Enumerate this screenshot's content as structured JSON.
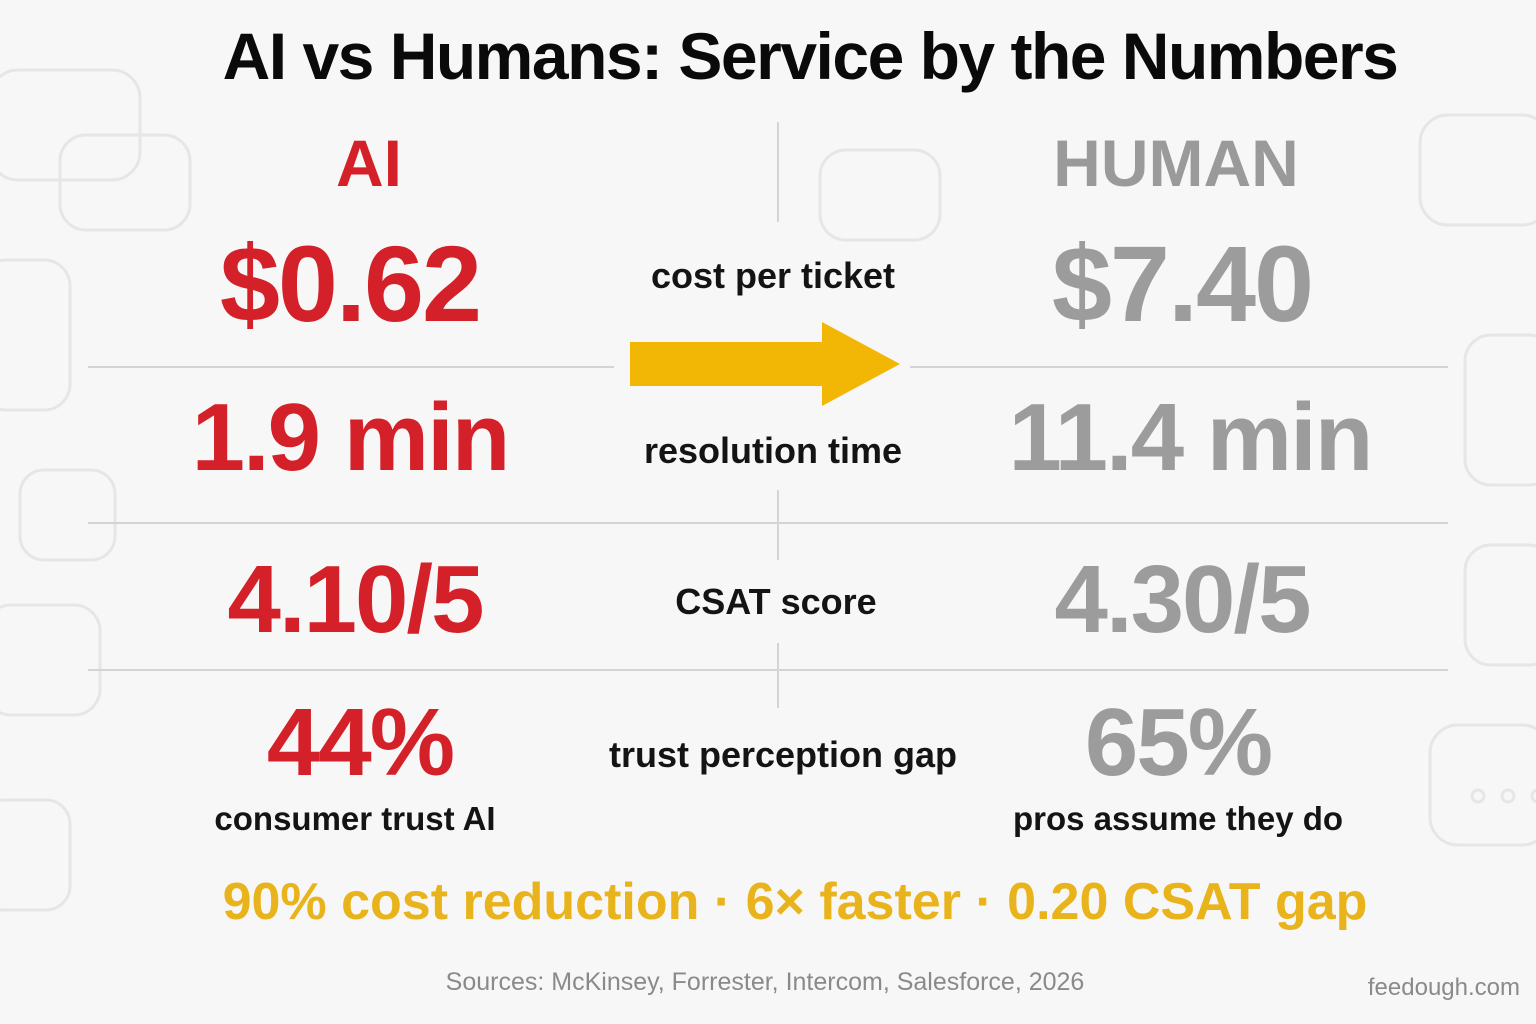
{
  "title": "AI vs Humans: Service by the Numbers",
  "columns": {
    "ai": "AI",
    "human": "HUMAN"
  },
  "rows": [
    {
      "label": "cost per ticket",
      "ai": "$0.62",
      "human": "$7.40"
    },
    {
      "label": "resolution time",
      "ai": "1.9 min",
      "human": "11.4 min"
    },
    {
      "label": "CSAT score",
      "ai": "4.10/5",
      "human": "4.30/5"
    },
    {
      "label": "trust perception gap",
      "ai": "44%",
      "human": "65%",
      "ai_sub": "consumer trust AI",
      "human_sub": "pros assume they do"
    }
  ],
  "summary": "90% cost reduction · 6× faster · 0.20 CSAT gap",
  "sources": "Sources: McKinsey, Forrester, Intercom, Salesforce, 2026",
  "site": "feedough.com",
  "colors": {
    "ai": "#d42028",
    "human": "#9c9c9c",
    "accent": "#f2b705"
  },
  "icons": [
    "arrow-right-icon",
    "chat-bubble-icon"
  ]
}
